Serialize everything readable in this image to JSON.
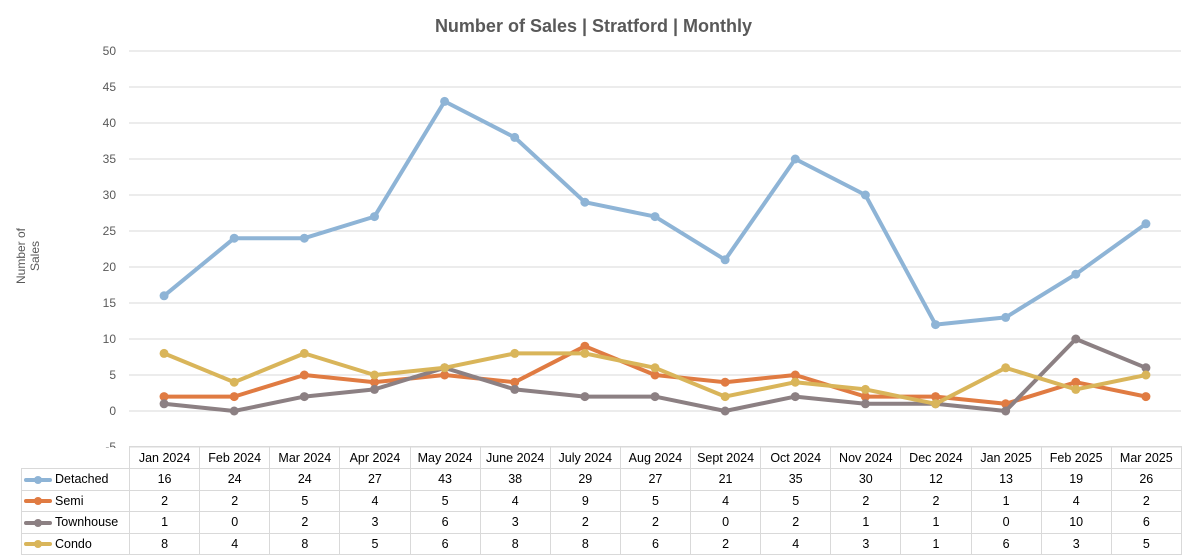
{
  "chart_data": {
    "type": "line",
    "title": "Number of Sales | Stratford | Monthly",
    "xlabel": "",
    "ylabel": "Number of Sales",
    "ylim": [
      -5,
      50
    ],
    "yticks": [
      -5,
      0,
      5,
      10,
      15,
      20,
      25,
      30,
      35,
      40,
      45,
      50
    ],
    "grid": true,
    "legend": "data-table-below",
    "categories": [
      "Jan 2024",
      "Feb 2024",
      "Mar 2024",
      "Apr 2024",
      "May 2024",
      "June 2024",
      "July 2024",
      "Aug 2024",
      "Sept 2024",
      "Oct 2024",
      "Nov 2024",
      "Dec 2024",
      "Jan 2025",
      "Feb 2025",
      "Mar 2025"
    ],
    "series": [
      {
        "name": "Detached",
        "color": "#8EB4D6",
        "values": [
          16,
          24,
          24,
          27,
          43,
          38,
          29,
          27,
          21,
          35,
          30,
          12,
          13,
          19,
          26
        ]
      },
      {
        "name": "Semi",
        "color": "#E07B42",
        "values": [
          2,
          2,
          5,
          4,
          5,
          4,
          9,
          5,
          4,
          5,
          2,
          2,
          1,
          4,
          2
        ]
      },
      {
        "name": "Townhouse",
        "color": "#8C8083",
        "values": [
          1,
          0,
          2,
          3,
          6,
          3,
          2,
          2,
          0,
          2,
          1,
          1,
          0,
          10,
          6
        ]
      },
      {
        "name": "Condo",
        "color": "#D9B55A",
        "values": [
          8,
          4,
          8,
          5,
          6,
          8,
          8,
          6,
          2,
          4,
          3,
          1,
          6,
          3,
          5
        ]
      }
    ]
  }
}
